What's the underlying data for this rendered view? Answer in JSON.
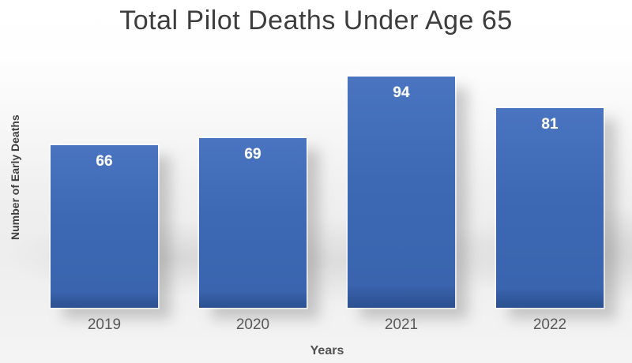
{
  "chart_data": {
    "type": "bar",
    "title": "Total Pilot Deaths Under Age 65",
    "categories": [
      "2019",
      "2020",
      "2021",
      "2022"
    ],
    "values": [
      66,
      69,
      94,
      81
    ],
    "xlabel": "Years",
    "ylabel": "Number of Early Deaths",
    "ylim": [
      0,
      100
    ],
    "grid": false,
    "legend": false,
    "bar_color": "#3c68b4",
    "value_label_color": "#ffffff",
    "title_color": "#3d3d3d",
    "axis_text_color": "#5a5a5a"
  }
}
